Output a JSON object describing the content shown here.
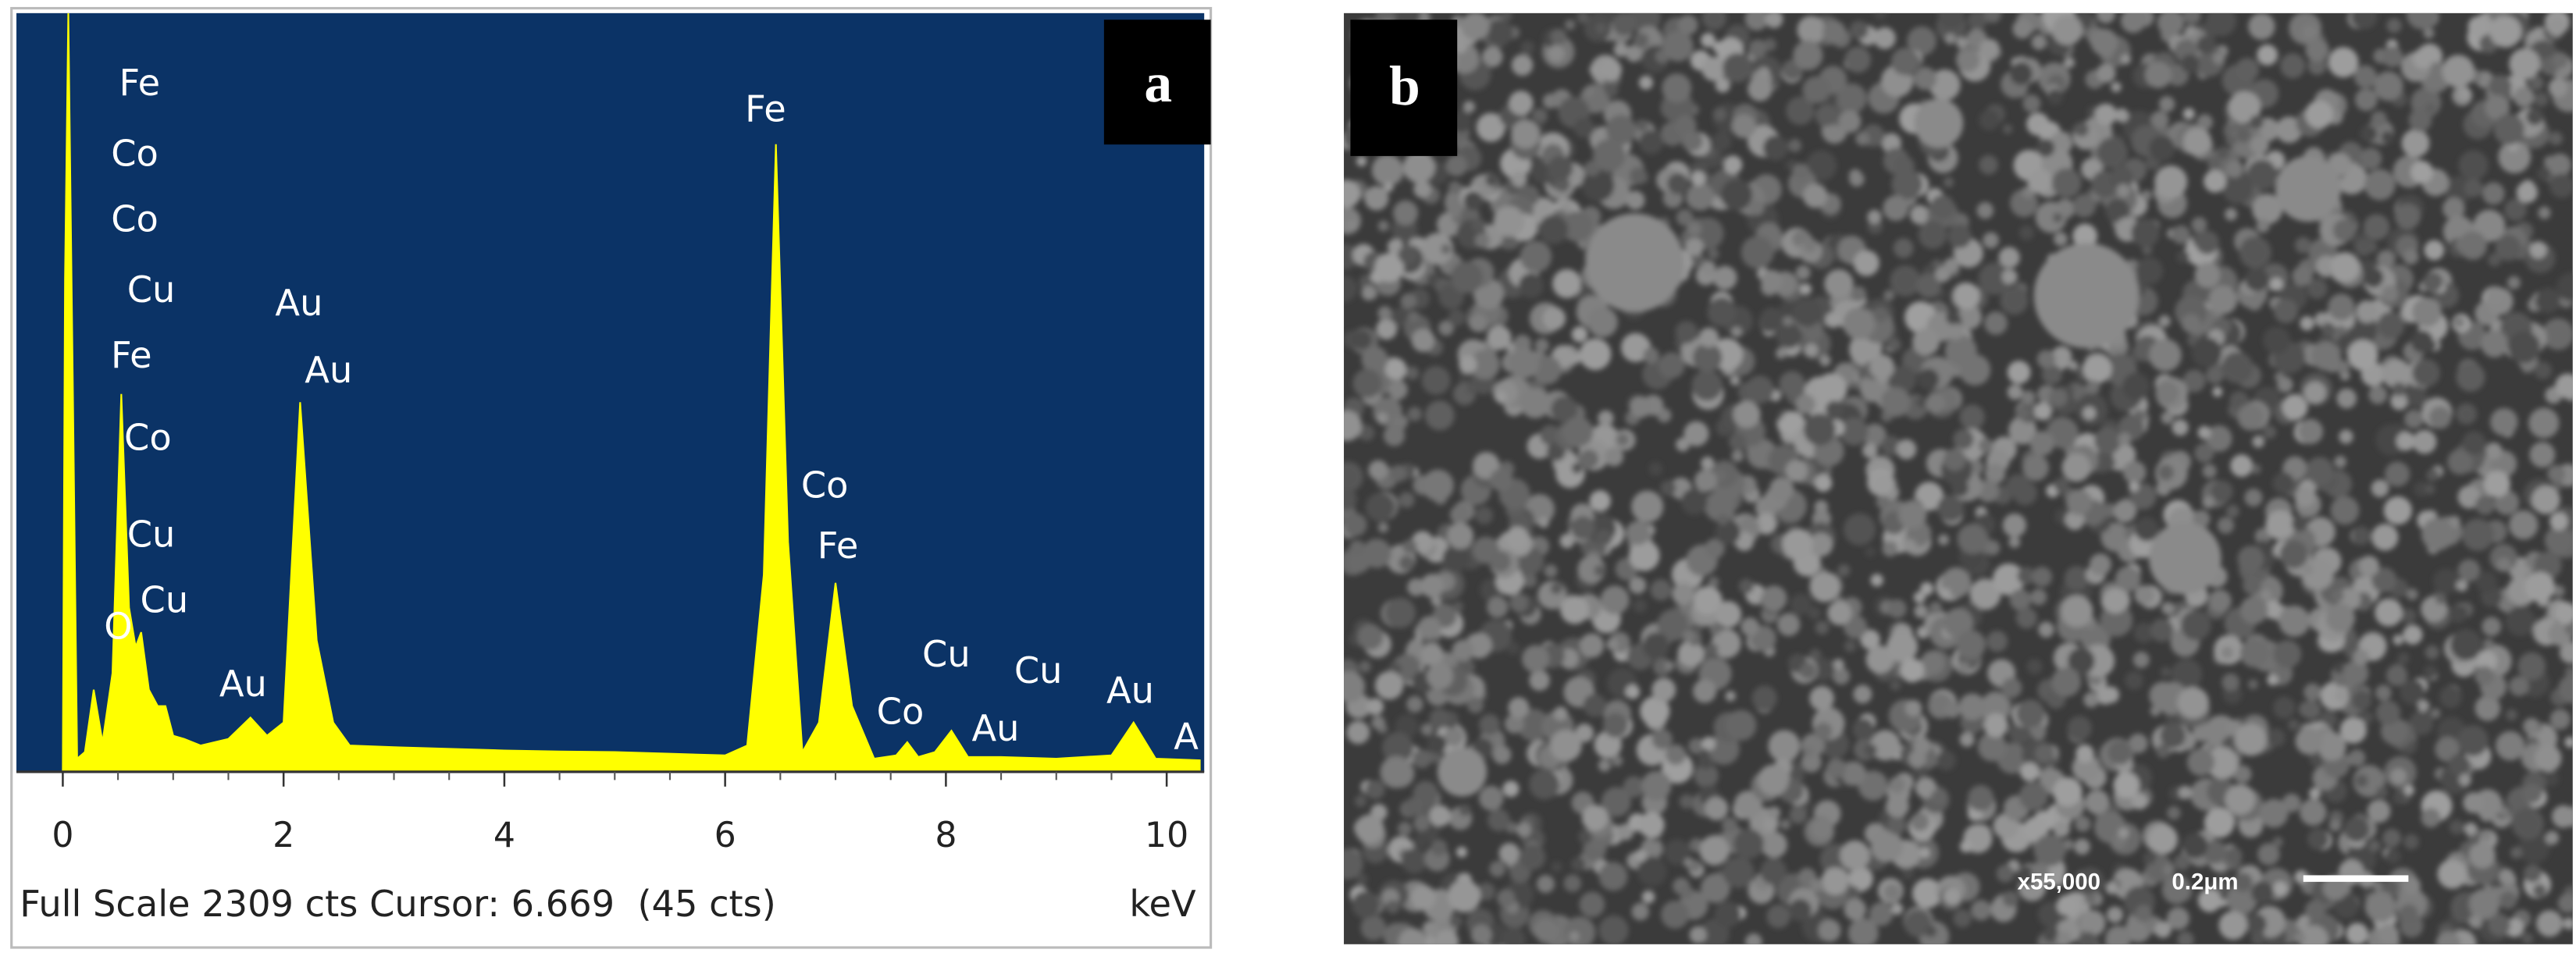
{
  "chart_data": {
    "type": "area",
    "panel_label": "a",
    "x": [
      0,
      0.02,
      0.05,
      0.09,
      0.13,
      0.2,
      0.28,
      0.36,
      0.45,
      0.53,
      0.6,
      0.66,
      0.71,
      0.78,
      0.86,
      0.93,
      1.0,
      1.1,
      1.25,
      1.5,
      1.7,
      1.85,
      2.0,
      2.15,
      2.3,
      2.45,
      2.6,
      3.0,
      3.5,
      4.0,
      4.5,
      5.0,
      5.5,
      6.0,
      6.2,
      6.35,
      6.46,
      6.57,
      6.7,
      6.85,
      7.0,
      7.15,
      7.35,
      7.55,
      7.65,
      7.75,
      7.9,
      8.05,
      8.2,
      8.5,
      9.0,
      9.5,
      9.7,
      9.9,
      10.3
    ],
    "values": [
      0,
      1500,
      2309,
      1200,
      40,
      60,
      250,
      90,
      300,
      1150,
      500,
      380,
      425,
      250,
      200,
      200,
      110,
      100,
      80,
      100,
      165,
      110,
      150,
      1125,
      400,
      150,
      80,
      75,
      70,
      65,
      62,
      60,
      55,
      50,
      80,
      600,
      1910,
      700,
      60,
      150,
      575,
      200,
      40,
      50,
      90,
      45,
      60,
      125,
      45,
      45,
      40,
      50,
      150,
      40,
      35
    ],
    "color": "#ffff00",
    "xlim": [
      -0.42,
      10.34
    ],
    "ylim": [
      0,
      2309
    ],
    "xticks": [
      0,
      2,
      4,
      6,
      8,
      10
    ],
    "xlabel": "keV",
    "footer": "Full Scale 2309 cts Cursor: 6.669  (45 cts)",
    "peak_labels": [
      "Fe",
      "Co",
      "Co",
      "Cu",
      "Fe",
      "Co",
      "Cu",
      "O",
      "Cu",
      "Au",
      "Au",
      "Au",
      "Fe",
      "Co",
      "Fe",
      "Co",
      "Cu",
      "Au",
      "Cu",
      "Au",
      "A"
    ]
  },
  "image_panel": {
    "label": "b",
    "magnification": "x55,000",
    "scale_bar": "0.2μm"
  }
}
